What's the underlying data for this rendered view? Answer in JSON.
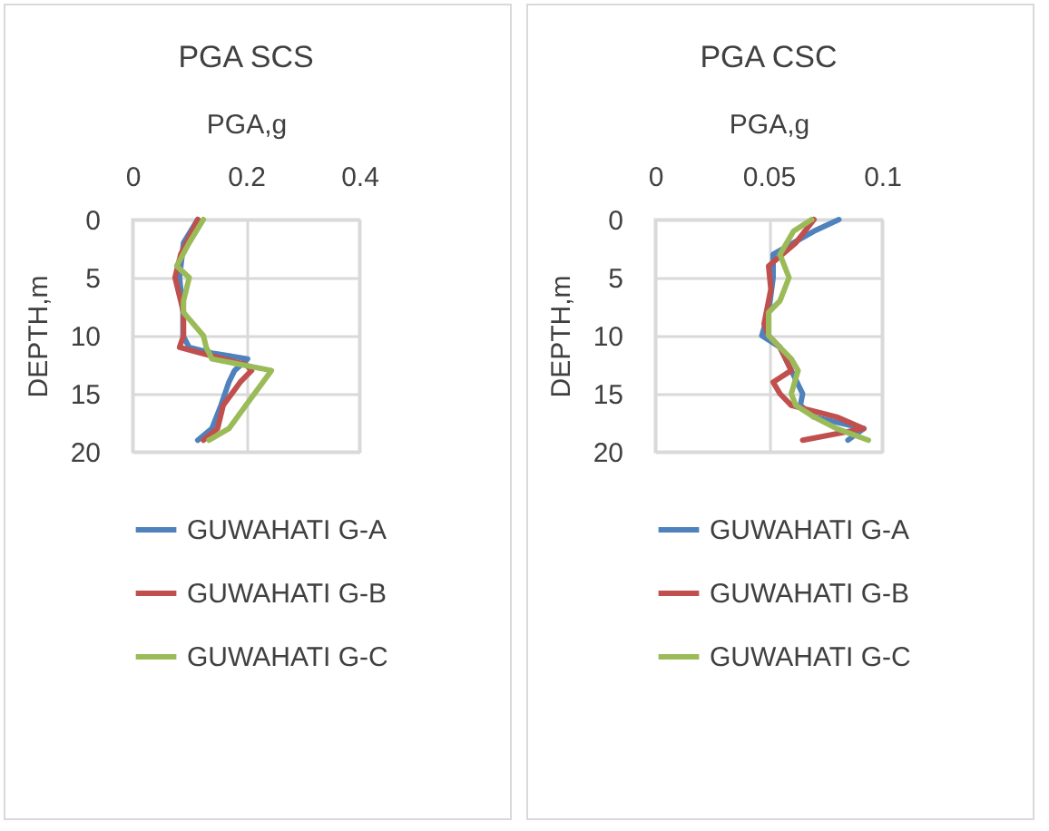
{
  "chart_data": [
    {
      "type": "line",
      "orientation": "horizontal",
      "title": "PGA SCS",
      "xlabel": "PGA,g",
      "ylabel": "DEPTH,m",
      "xlim": [
        0,
        0.4
      ],
      "xticks": [
        0,
        0.2,
        0.4
      ],
      "ylim": [
        20,
        0
      ],
      "yticks": [
        0,
        5,
        10,
        15,
        20
      ],
      "grid": true,
      "legend": "bottom",
      "line_style": "solid",
      "series": [
        {
          "name": "GUWAHATI G-A",
          "color": "#4f81bd",
          "values": [
            0.115,
            0.09,
            0.083,
            0.089,
            0.089,
            0.1,
            0.14,
            0.203,
            0.18,
            0.17,
            0.156,
            0.14,
            0.115
          ],
          "x": [
            0,
            2,
            5,
            8,
            10,
            11,
            11.5,
            12,
            13,
            14,
            16,
            18,
            19
          ]
        },
        {
          "name": "GUWAHATI G-B",
          "color": "#c0504d",
          "values": [
            0.115,
            0.085,
            0.075,
            0.09,
            0.09,
            0.083,
            0.12,
            0.2,
            0.21,
            0.19,
            0.16,
            0.15,
            0.125
          ],
          "x": [
            0,
            3,
            5,
            8,
            10,
            11,
            11.5,
            12.5,
            13,
            14,
            16,
            18,
            19
          ]
        },
        {
          "name": "GUWAHATI G-C",
          "color": "#9bbb59",
          "values": [
            0.125,
            0.1,
            0.078,
            0.1,
            0.09,
            0.09,
            0.125,
            0.13,
            0.14,
            0.245,
            0.23,
            0.2,
            0.17,
            0.135
          ],
          "x": [
            0,
            2,
            4,
            5,
            7,
            8,
            10,
            11,
            12,
            13,
            14,
            16,
            18,
            19
          ]
        }
      ]
    },
    {
      "type": "line",
      "orientation": "horizontal",
      "title": "PGA CSC",
      "xlabel": "PGA,g",
      "ylabel": "DEPTH,m",
      "xlim": [
        0,
        0.1
      ],
      "xticks": [
        0,
        0.05,
        0.1
      ],
      "ylim": [
        20,
        0
      ],
      "yticks": [
        0,
        5,
        10,
        15,
        20
      ],
      "grid": true,
      "legend": "bottom",
      "line_style": "solid",
      "series": [
        {
          "name": "GUWAHATI G-A",
          "color": "#4f81bd",
          "values": [
            0.081,
            0.07,
            0.052,
            0.052,
            0.05,
            0.047,
            0.055,
            0.06,
            0.065,
            0.064,
            0.07,
            0.092,
            0.085
          ],
          "x": [
            0,
            1,
            3,
            5,
            8,
            10,
            11,
            13,
            15,
            16,
            17,
            18,
            19
          ]
        },
        {
          "name": "GUWAHATI G-B",
          "color": "#c0504d",
          "values": [
            0.07,
            0.062,
            0.05,
            0.051,
            0.048,
            0.05,
            0.055,
            0.06,
            0.052,
            0.055,
            0.06,
            0.08,
            0.092,
            0.065
          ],
          "x": [
            0,
            2,
            4,
            6,
            9,
            10,
            11,
            13,
            14,
            15,
            16,
            17,
            18,
            19
          ]
        },
        {
          "name": "GUWAHATI G-C",
          "color": "#9bbb59",
          "values": [
            0.069,
            0.061,
            0.055,
            0.059,
            0.055,
            0.05,
            0.05,
            0.06,
            0.063,
            0.06,
            0.062,
            0.07,
            0.08,
            0.094
          ],
          "x": [
            0,
            1,
            3,
            5,
            7,
            8,
            10,
            12,
            13,
            15,
            16,
            17,
            18,
            19
          ]
        }
      ]
    }
  ]
}
